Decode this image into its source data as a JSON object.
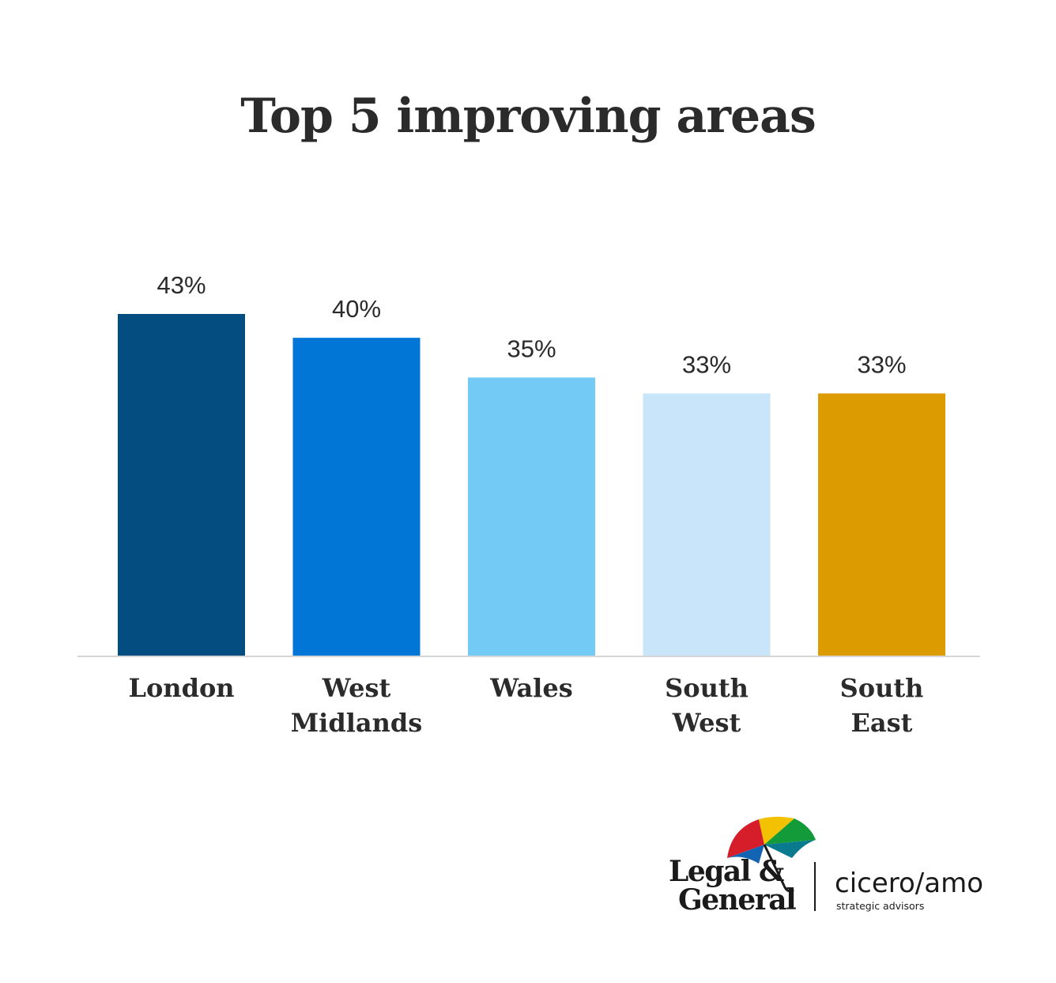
{
  "chart_data": {
    "type": "bar",
    "title": "Top 5 improving areas",
    "categories": [
      [
        "London"
      ],
      [
        "West",
        "Midlands"
      ],
      [
        "Wales"
      ],
      [
        "South",
        "West"
      ],
      [
        "South",
        "East"
      ]
    ],
    "values": [
      43,
      40,
      35,
      33,
      33
    ],
    "value_labels": [
      "43%",
      "40%",
      "35%",
      "33%",
      "33%"
    ],
    "colors": [
      "#034d80",
      "#0276d7",
      "#73caf4",
      "#c9e5f9",
      "#dc9c00"
    ],
    "ylim": [
      0,
      43
    ],
    "grid": false,
    "legend": "none"
  },
  "logos": {
    "legal_general": [
      "Legal &",
      "General"
    ],
    "ciceroamo": "cicero/amo",
    "ciceroamo_tagline": "strategic advisors"
  }
}
